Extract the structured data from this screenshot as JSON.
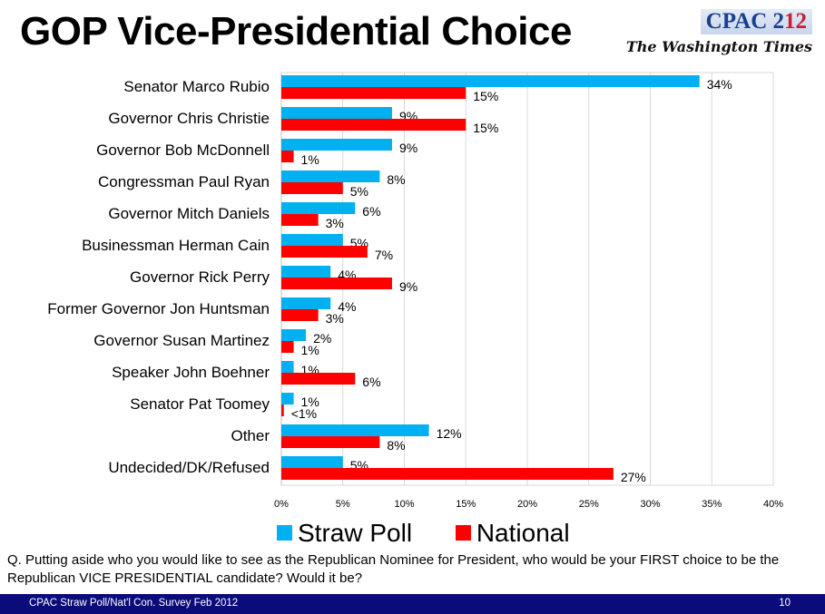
{
  "title": "GOP Vice-Presidential Choice",
  "logo": {
    "cpac_a": "CPAC 2",
    "cpac_b": "12",
    "paper": "The Washington Times"
  },
  "question": "Q. Putting aside who you would like to see as the Republican Nominee for President, who would be your FIRST choice to be the Republican VICE PRESIDENTIAL candidate? Would it be?",
  "footer": {
    "left": "CPAC Straw Poll/Nat'l Con. Survey Feb 2012",
    "page": "10"
  },
  "colors": {
    "straw": "#00b0f0",
    "national": "#ff0000",
    "footer": "#0b0b7a"
  },
  "chart_data": {
    "type": "bar",
    "orientation": "horizontal",
    "categories": [
      "Senator Marco Rubio",
      "Governor Chris Christie",
      "Governor Bob McDonnell",
      "Congressman Paul Ryan",
      "Governor Mitch Daniels",
      "Businessman Herman Cain",
      "Governor Rick Perry",
      "Former Governor Jon Huntsman",
      "Governor Susan Martinez",
      "Speaker John Boehner",
      "Senator Pat Toomey",
      "Other",
      "Undecided/DK/Refused"
    ],
    "series": [
      {
        "name": "Straw Poll",
        "values": [
          34,
          9,
          9,
          8,
          6,
          5,
          4,
          4,
          2,
          1,
          1,
          12,
          5
        ],
        "labels": [
          "34%",
          "9%",
          "9%",
          "8%",
          "6%",
          "5%",
          "4%",
          "4%",
          "2%",
          "1%",
          "1%",
          "12%",
          "5%"
        ]
      },
      {
        "name": "National",
        "values": [
          15,
          15,
          1,
          5,
          3,
          7,
          9,
          3,
          1,
          6,
          0.2,
          8,
          27
        ],
        "labels": [
          "15%",
          "15%",
          "1%",
          "5%",
          "3%",
          "7%",
          "9%",
          "3%",
          "1%",
          "6%",
          "<1%",
          "8%",
          "27%"
        ]
      }
    ],
    "xlim": [
      0,
      40
    ],
    "xticks": [
      "0%",
      "5%",
      "10%",
      "15%",
      "20%",
      "25%",
      "30%",
      "35%",
      "40%"
    ],
    "grid": true,
    "legend": "bottom"
  }
}
